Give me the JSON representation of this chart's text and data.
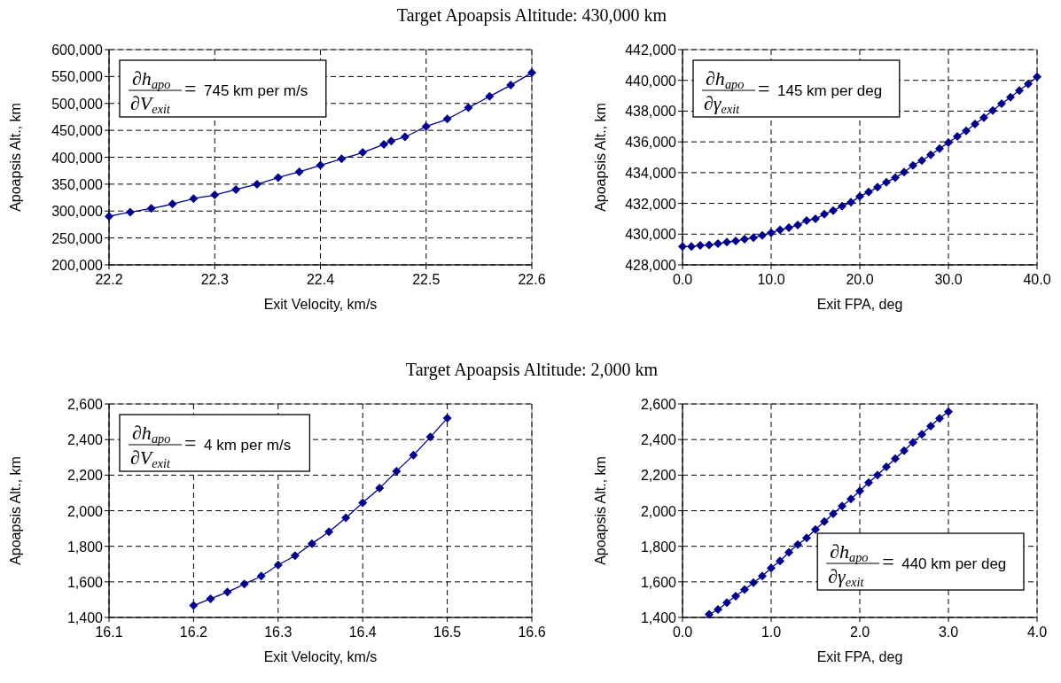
{
  "chart_data": [
    {
      "type": "line",
      "title": "Target Apoapsis Altitude: 430,000 km",
      "xlabel": "Exit Velocity, km/s",
      "ylabel": "Apoapsis Alt., km",
      "color": "#00008b",
      "marker": "diamond",
      "line_style": "solid",
      "grid": true,
      "x": [
        22.2,
        22.22,
        22.24,
        22.26,
        22.28,
        22.3,
        22.32,
        22.34,
        22.36,
        22.38,
        22.4,
        22.42,
        22.44,
        22.46,
        22.467,
        22.48,
        22.5,
        22.52,
        22.54,
        22.56,
        22.58,
        22.6
      ],
      "values": [
        290000,
        298000,
        305000,
        313000,
        323000,
        330000,
        340000,
        350000,
        362000,
        373000,
        385000,
        397000,
        409000,
        424000,
        430000,
        438000,
        457000,
        471000,
        492000,
        513000,
        534000,
        557000
      ],
      "xlim": [
        22.2,
        22.6
      ],
      "xticks": [
        22.2,
        22.3,
        22.4,
        22.5,
        22.6
      ],
      "ylim": [
        200000,
        600000
      ],
      "yticks": [
        {
          "value": 200000,
          "label": "200,000"
        },
        {
          "value": 250000,
          "label": "250,000"
        },
        {
          "value": 300000,
          "label": "300,000"
        },
        {
          "value": 350000,
          "label": "350,000"
        },
        {
          "value": 400000,
          "label": "400,000"
        },
        {
          "value": 450000,
          "label": "450,000"
        },
        {
          "value": 500000,
          "label": "500,000"
        },
        {
          "value": 550000,
          "label": "550,000"
        },
        {
          "value": 600000,
          "label": "600,000"
        }
      ],
      "annotations": [
        "∂h$_{apo}$ ∂V$_{exit}$ = 745 km per m/s"
      ]
    },
    {
      "type": "line",
      "xlabel": "Exit FPA, deg",
      "ylabel": "Apoapsis Alt., km",
      "color": "#00008b",
      "marker": "diamond",
      "line_style": "solid",
      "grid": true,
      "x": [
        0,
        1,
        2,
        3,
        4,
        5,
        6,
        7,
        8,
        9,
        10,
        11,
        12,
        13,
        14,
        15,
        16,
        17,
        18,
        19,
        20,
        21,
        22,
        23,
        24,
        25,
        26,
        27,
        28,
        29,
        30,
        31,
        32,
        33,
        34,
        35,
        36,
        37,
        38,
        39,
        40
      ],
      "values": [
        429190,
        429190,
        429270,
        429290,
        429380,
        429480,
        429550,
        429670,
        429770,
        429920,
        430090,
        430280,
        430420,
        430590,
        430880,
        431000,
        431300,
        431530,
        431820,
        432070,
        432450,
        432740,
        433050,
        433370,
        433680,
        434030,
        434470,
        434790,
        435160,
        435560,
        435950,
        436350,
        436710,
        437160,
        437580,
        438040,
        438480,
        438900,
        439340,
        439770,
        440230
      ],
      "xlim": [
        0,
        40
      ],
      "xticks": [
        {
          "value": 0,
          "label": "0.0"
        },
        {
          "value": 10,
          "label": "10.0"
        },
        {
          "value": 20,
          "label": "20.0"
        },
        {
          "value": 30,
          "label": "30.0"
        },
        {
          "value": 40,
          "label": "40.0"
        }
      ],
      "ylim": [
        428000,
        442000
      ],
      "yticks": [
        {
          "value": 428000,
          "label": "428,000"
        },
        {
          "value": 430000,
          "label": "430,000"
        },
        {
          "value": 432000,
          "label": "432,000"
        },
        {
          "value": 434000,
          "label": "434,000"
        },
        {
          "value": 436000,
          "label": "436,000"
        },
        {
          "value": 438000,
          "label": "438,000"
        },
        {
          "value": 440000,
          "label": "440,000"
        },
        {
          "value": 442000,
          "label": "442,000"
        }
      ],
      "annotations": [
        "∂h$_{apo}$ ∂γ$_{exit}$ = 145 km per deg"
      ]
    },
    {
      "type": "line",
      "title": "Target Apoapsis Altitude: 2,000 km",
      "xlabel": "Exit Velocity, km/s",
      "ylabel": "Apoapsis Alt., km",
      "color": "#00008b",
      "marker": "diamond",
      "line_style": "solid",
      "grid": true,
      "x": [
        16.2,
        16.22,
        16.24,
        16.26,
        16.28,
        16.3,
        16.32,
        16.34,
        16.36,
        16.38,
        16.4,
        16.42,
        16.44,
        16.46,
        16.48,
        16.5
      ],
      "values": [
        1467,
        1505,
        1543,
        1588,
        1633,
        1695,
        1747,
        1815,
        1882,
        1960,
        2045,
        2127,
        2222,
        2313,
        2414,
        2520
      ],
      "xlim": [
        16.1,
        16.6
      ],
      "xticks": [
        16.1,
        16.2,
        16.3,
        16.4,
        16.5,
        16.6
      ],
      "ylim": [
        1400,
        2600
      ],
      "yticks": [
        {
          "value": 1400,
          "label": "1,400"
        },
        {
          "value": 1600,
          "label": "1,600"
        },
        {
          "value": 1800,
          "label": "1,800"
        },
        {
          "value": 2000,
          "label": "2,000"
        },
        {
          "value": 2200,
          "label": "2,200"
        },
        {
          "value": 2400,
          "label": "2,400"
        },
        {
          "value": 2600,
          "label": "2,600"
        }
      ],
      "annotations": [
        "∂h$_{apo}$ ∂V$_{exit}$ = 4 km per m/s"
      ]
    },
    {
      "type": "line",
      "xlabel": "Exit FPA, deg",
      "ylabel": "Apoapsis Alt., km",
      "color": "#00008b",
      "marker": "diamond",
      "line_style": "solid",
      "grid": true,
      "x": [
        0.3,
        0.4,
        0.5,
        0.6,
        0.7,
        0.8,
        0.9,
        1.0,
        1.1,
        1.2,
        1.3,
        1.4,
        1.5,
        1.6,
        1.7,
        1.8,
        1.9,
        2.0,
        2.1,
        2.2,
        2.3,
        2.4,
        2.5,
        2.6,
        2.7,
        2.8,
        2.9,
        3.0
      ],
      "values": [
        1417,
        1445,
        1483,
        1520,
        1557,
        1595,
        1633,
        1678,
        1718,
        1766,
        1809,
        1847,
        1894,
        1939,
        1982,
        2026,
        2066,
        2111,
        2158,
        2201,
        2246,
        2293,
        2337,
        2384,
        2429,
        2476,
        2519,
        2557
      ],
      "xlim": [
        0,
        4
      ],
      "xticks": [
        {
          "value": 0,
          "label": "0.0"
        },
        {
          "value": 1,
          "label": "1.0"
        },
        {
          "value": 2,
          "label": "2.0"
        },
        {
          "value": 3,
          "label": "3.0"
        },
        {
          "value": 4,
          "label": "4.0"
        }
      ],
      "ylim": [
        1400,
        2600
      ],
      "yticks": [
        {
          "value": 1400,
          "label": "1,400"
        },
        {
          "value": 1600,
          "label": "1,600"
        },
        {
          "value": 1800,
          "label": "1,800"
        },
        {
          "value": 2000,
          "label": "2,000"
        },
        {
          "value": 2200,
          "label": "2,200"
        },
        {
          "value": 2400,
          "label": "2,400"
        },
        {
          "value": 2600,
          "label": "2,600"
        }
      ],
      "annotations": [
        "∂h$_{apo}$ ∂γ$_{exit}$ = 440 km per deg"
      ]
    }
  ]
}
